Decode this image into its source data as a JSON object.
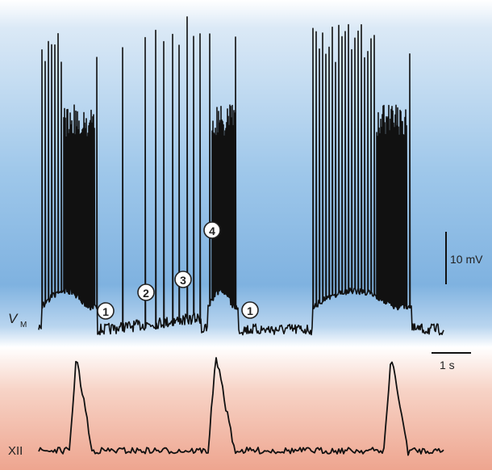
{
  "chart_data": {
    "type": "line",
    "title": "",
    "traces": [
      {
        "label": "V",
        "label_subscript": "M",
        "color": "#111111",
        "description_numbers": [
          "1",
          "2",
          "3",
          "4",
          "1"
        ]
      },
      {
        "label": "XII",
        "color": "#111111"
      }
    ],
    "scale_bars": {
      "voltage": "10 mV",
      "time": "1 s"
    },
    "markers": [
      "1",
      "2",
      "3",
      "4",
      "1"
    ],
    "background": {
      "top_color": "#8ebde6",
      "bottom_color": "#eea58f"
    }
  }
}
